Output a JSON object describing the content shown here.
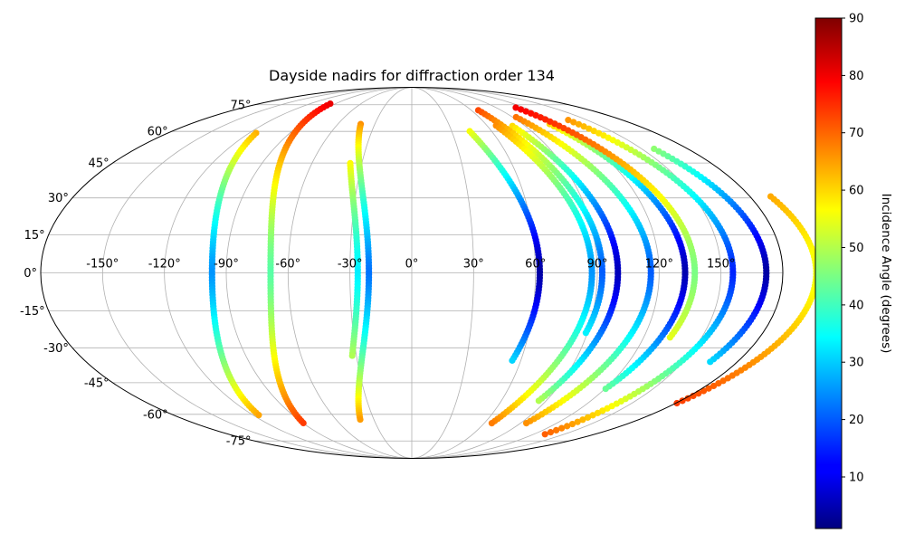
{
  "chart_data": {
    "type": "scatter",
    "projection": "mollweide",
    "title": "Dayside nadirs for diffraction order 134",
    "xlabel": "",
    "ylabel": "",
    "grid": true,
    "longitude_ticks": [
      "-150°",
      "-120°",
      "-90°",
      "-60°",
      "-30°",
      "0°",
      "30°",
      "60°",
      "90°",
      "120°",
      "150°"
    ],
    "latitude_ticks": [
      "75°",
      "60°",
      "45°",
      "30°",
      "15°",
      "0°",
      "-15°",
      "-30°",
      "-45°",
      "-60°",
      "-75°"
    ],
    "colorbar": {
      "label": "Incidence Angle (degrees)",
      "colormap": "jet",
      "range": [
        1,
        90
      ],
      "ticks": [
        "10",
        "20",
        "30",
        "40",
        "50",
        "60",
        "70",
        "80",
        "90"
      ]
    },
    "series": [
      {
        "lon0": 25.1,
        "lat0": 60.1,
        "lat1": -36.3,
        "cmin": 4.0
      },
      {
        "lon0": 135.0,
        "lat0": 51.5,
        "lat1": -36.2,
        "cmin": 4.0
      },
      {
        "lon0": 95.6,
        "lat0": 63.8,
        "lat1": -48.7,
        "cmin": 5.0
      },
      {
        "lon0": 63.0,
        "lat0": 62.8,
        "lat1": -53.4,
        "cmin": 6.0
      },
      {
        "lon0": 118.8,
        "lat0": 66.0,
        "lat1": -71.6,
        "cmin": 15.0
      },
      {
        "lon0": 79.0,
        "lat0": 67.6,
        "lat1": -65.3,
        "cmin": 20.0
      },
      {
        "lon0": 55.4,
        "lat0": 71.6,
        "lat1": -24.6,
        "cmin": 20.0
      },
      {
        "lon0": -57.8,
        "lat0": 63.8,
        "lat1": -62.9,
        "cmin": 22.0
      },
      {
        "lon0": -133.9,
        "lat0": 59.2,
        "lat1": -60.5,
        "cmin": 25.0
      },
      {
        "lon0": 50.4,
        "lat0": 63.0,
        "lat1": -65.1,
        "cmin": 25.0
      },
      {
        "lon0": -63.2,
        "lat0": 44.9,
        "lat1": -34.3,
        "cmin": 33.0
      },
      {
        "lon0": -105.5,
        "lat0": 75.7,
        "lat1": -65.0,
        "cmin": 42.0
      },
      {
        "lon0": 100.3,
        "lat0": 73.2,
        "lat1": -26.3,
        "cmin": 45.0
      },
      {
        "lon0": 159.2,
        "lat0": 30.6,
        "lat1": -54.7,
        "cmin": 55.0
      }
    ]
  }
}
